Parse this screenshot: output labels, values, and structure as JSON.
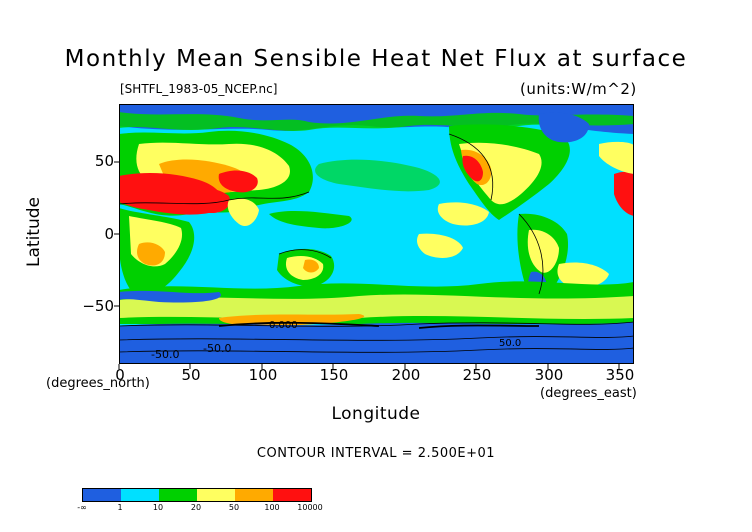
{
  "title": "Monthly Mean Sensible Heat Net Flux at surface",
  "file_label": "[SHTFL_1983-05_NCEP.nc]",
  "units_label": "(units:W/m^2)",
  "axes": {
    "y_label": "Latitude",
    "x_label": "Longitude",
    "y_unit_label": "(degrees_north)",
    "x_unit_label": "(degrees_east)",
    "y_ticks": [
      "50",
      "0",
      "−50"
    ],
    "x_ticks": [
      "0",
      "50",
      "100",
      "150",
      "200",
      "250",
      "300",
      "350"
    ]
  },
  "contour_interval_text": "CONTOUR INTERVAL = 2.500E+01",
  "contour_labels": [
    "-50.0",
    "0.000",
    "50.0"
  ],
  "colorbar": {
    "labels": [
      "-∞",
      "1",
      "10",
      "20",
      "50",
      "100",
      "10000"
    ],
    "colors": [
      "#1f5fe0",
      "#00e0ff",
      "#00d000",
      "#ffff60",
      "#ffaa00",
      "#ff1010"
    ]
  },
  "map_extent": {
    "lon": [
      0,
      360
    ],
    "lat": [
      -90,
      90
    ]
  }
}
